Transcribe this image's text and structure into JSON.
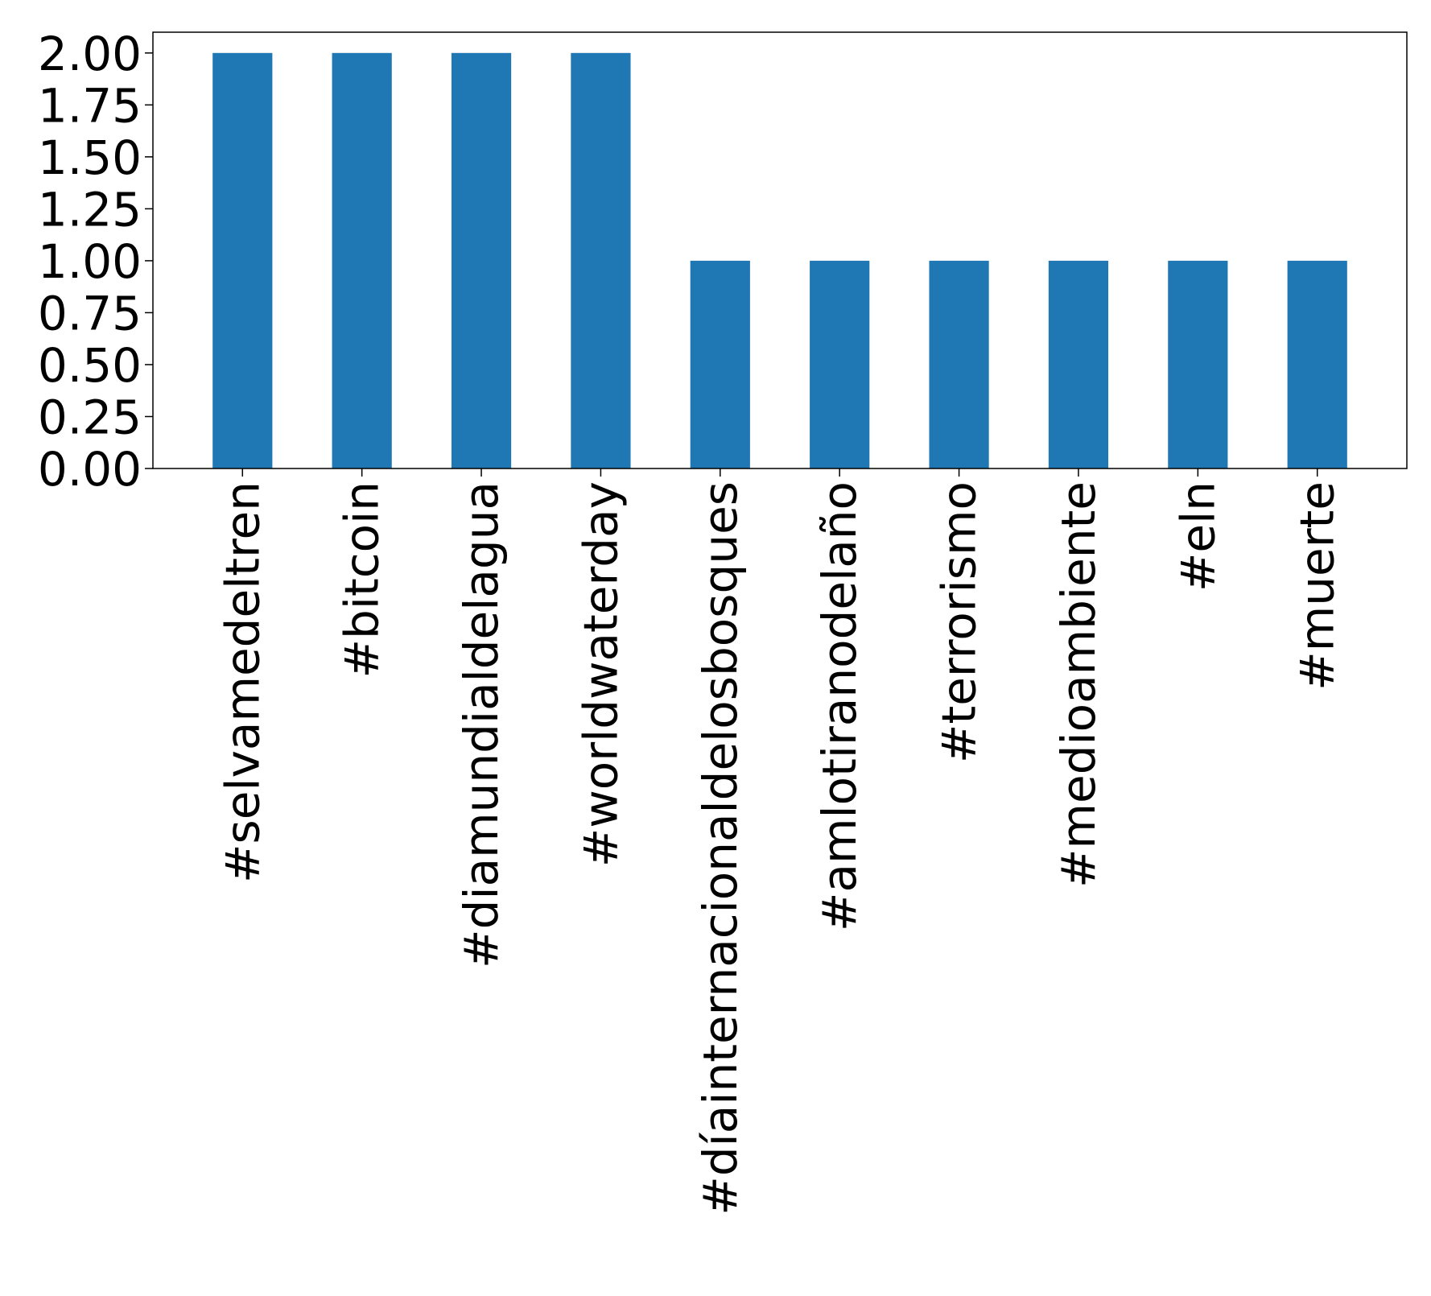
{
  "chart_data": {
    "type": "bar",
    "title": "",
    "xlabel": "",
    "ylabel": "",
    "categories": [
      "#selvamedeltren",
      "#bitcoin",
      "#diamundialdelagua",
      "#worldwaterday",
      "#díainternacionaldelosbosques",
      "#amlotiranodelaño",
      "#terrorismo",
      "#medioambiente",
      "#eln",
      "#muerte"
    ],
    "values": [
      2,
      2,
      2,
      2,
      1,
      1,
      1,
      1,
      1,
      1
    ],
    "ylim": [
      0,
      2.1
    ],
    "yticks": [
      "0.00",
      "0.25",
      "0.50",
      "0.75",
      "1.00",
      "1.25",
      "1.50",
      "1.75",
      "2.00"
    ],
    "grid": false,
    "legend": "none",
    "bar_color": "#1f77b4"
  }
}
